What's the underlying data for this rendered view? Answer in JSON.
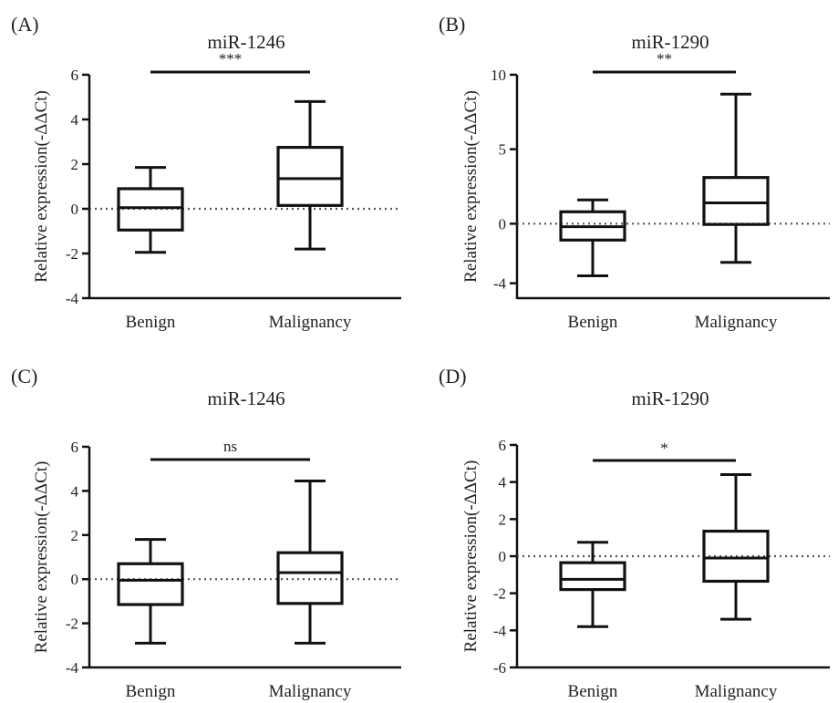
{
  "chart_data": [
    {
      "panel": "(A)",
      "type": "boxplot",
      "title": "miR-1246",
      "ylabel": "Relative expression(-ΔΔCt)",
      "ylim": [
        -4,
        6
      ],
      "yticks": [
        -4,
        -2,
        0,
        2,
        4,
        6
      ],
      "categories": [
        "Benign",
        "Malignancy"
      ],
      "boxes": [
        {
          "min": -1.95,
          "q1": -0.95,
          "median": 0.05,
          "q3": 0.9,
          "max": 1.85
        },
        {
          "min": -1.8,
          "q1": 0.15,
          "median": 1.35,
          "q3": 2.75,
          "max": 4.8
        }
      ],
      "reference_line": 0,
      "significance": "***"
    },
    {
      "panel": "(B)",
      "type": "boxplot",
      "title": "miR-1290",
      "ylabel": "Relative expression(-ΔΔCt)",
      "ylim": [
        -5,
        10
      ],
      "yticks": [
        -4,
        0,
        5,
        10
      ],
      "ytick_labels": [
        "-4",
        "0",
        "5",
        "10"
      ],
      "categories": [
        "Benign",
        "Malignancy"
      ],
      "boxes": [
        {
          "min": -3.5,
          "q1": -1.1,
          "median": -0.2,
          "q3": 0.8,
          "max": 1.6
        },
        {
          "min": -2.6,
          "q1": -0.05,
          "median": 1.4,
          "q3": 3.1,
          "max": 8.7
        }
      ],
      "reference_line": 0,
      "significance": "**"
    },
    {
      "panel": "(C)",
      "type": "boxplot",
      "title": "miR-1246",
      "ylabel": "Relative expression(-ΔΔCt)",
      "ylim": [
        -4,
        6
      ],
      "yticks": [
        -4,
        -2,
        0,
        2,
        4,
        6
      ],
      "categories": [
        "Benign",
        "Malignancy"
      ],
      "boxes": [
        {
          "min": -2.9,
          "q1": -1.15,
          "median": -0.05,
          "q3": 0.7,
          "max": 1.8
        },
        {
          "min": -2.9,
          "q1": -1.1,
          "median": 0.3,
          "q3": 1.2,
          "max": 4.45
        }
      ],
      "reference_line": 0,
      "significance": "ns"
    },
    {
      "panel": "(D)",
      "type": "boxplot",
      "title": "miR-1290",
      "ylabel": "Relative expression(-ΔΔCt)",
      "ylim": [
        -6,
        6
      ],
      "yticks": [
        -6,
        -4,
        -2,
        0,
        2,
        4,
        6
      ],
      "categories": [
        "Benign",
        "Malignancy"
      ],
      "boxes": [
        {
          "min": -3.8,
          "q1": -1.8,
          "median": -1.25,
          "q3": -0.35,
          "max": 0.75
        },
        {
          "min": -3.4,
          "q1": -1.35,
          "median": -0.1,
          "q3": 1.35,
          "max": 4.4
        }
      ],
      "reference_line": 0,
      "significance": "*"
    }
  ]
}
